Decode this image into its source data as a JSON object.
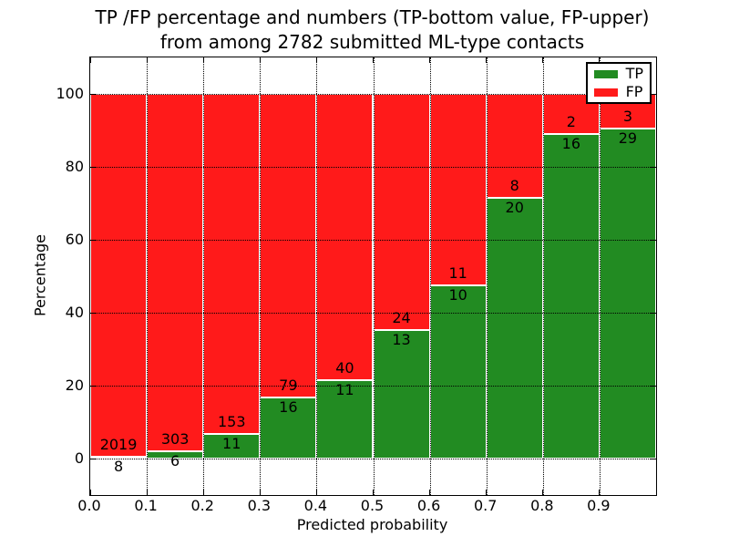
{
  "title": {
    "line1": "TP /FP percentage and numbers (TP-bottom value, FP-upper)",
    "line2": "from among 2782 submitted ML-type contacts"
  },
  "chart_data": {
    "type": "bar",
    "variant": "stacked-percentage",
    "title": "TP /FP percentage and numbers (TP-bottom value, FP-upper) from among 2782 submitted ML-type contacts",
    "xlabel": "Predicted probability",
    "ylabel": "Percentage",
    "total_contacts": 2782,
    "bins": {
      "start": 0.0,
      "bin_width": 0.1,
      "count": 10
    },
    "categories": [
      "0.0-0.1",
      "0.1-0.2",
      "0.2-0.3",
      "0.3-0.4",
      "0.4-0.5",
      "0.5-0.6",
      "0.6-0.7",
      "0.7-0.8",
      "0.8-0.9",
      "0.9-1.0"
    ],
    "series": [
      {
        "name": "TP",
        "color": "#228b22",
        "position": "bottom",
        "values": [
          8,
          6,
          11,
          16,
          11,
          13,
          10,
          20,
          16,
          29
        ]
      },
      {
        "name": "FP",
        "color": "#ff1a1a",
        "position": "top",
        "values": [
          2019,
          303,
          153,
          79,
          40,
          24,
          11,
          8,
          2,
          3
        ]
      }
    ],
    "tp_percentages": [
      0.39,
      1.94,
      6.71,
      16.84,
      21.57,
      35.14,
      47.62,
      71.43,
      88.89,
      90.63
    ],
    "xlim": [
      0.0,
      1.0
    ],
    "ylim": [
      -10,
      110
    ],
    "x_ticks": [
      "0.0",
      "0.1",
      "0.2",
      "0.3",
      "0.4",
      "0.5",
      "0.6",
      "0.7",
      "0.8",
      "0.9"
    ],
    "y_ticks": [
      0,
      20,
      40,
      60,
      80,
      100
    ],
    "grid": "dotted-black-over-bars",
    "bar_edge_color": "#ffffff",
    "legend": {
      "position": "upper-right",
      "entries": [
        {
          "label": "TP",
          "color": "#228b22"
        },
        {
          "label": "FP",
          "color": "#ff1a1a"
        }
      ]
    }
  }
}
